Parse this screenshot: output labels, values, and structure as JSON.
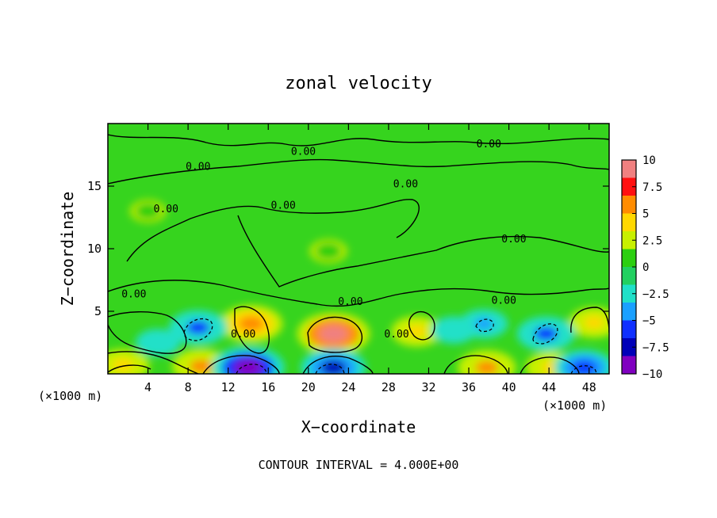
{
  "chart_data": {
    "type": "heatmap",
    "title": "zonal velocity",
    "xlabel": "X−coordinate",
    "ylabel": "Z−coordinate",
    "x_unit_label_left": "(×1000 m)",
    "x_unit_label_right": "(×1000 m)",
    "footer": "CONTOUR INTERVAL = 4.000E+00",
    "xlim": [
      0,
      50
    ],
    "ylim": [
      0,
      20
    ],
    "x_ticks": [
      4,
      8,
      12,
      16,
      20,
      24,
      28,
      32,
      36,
      40,
      44,
      48
    ],
    "x_tick_labels": [
      "4",
      "8",
      "12",
      "16",
      "20",
      "24",
      "28",
      "32",
      "36",
      "40",
      "44",
      "48"
    ],
    "y_ticks": [
      5,
      10,
      15
    ],
    "y_tick_labels": [
      "5",
      "10",
      "15"
    ],
    "colorbar": {
      "range": [
        -10,
        10
      ],
      "ticks": [
        10,
        7.5,
        5,
        2.5,
        0,
        -2.5,
        -5,
        -7.5,
        -10
      ],
      "tick_labels": [
        "10",
        "7.5",
        "5",
        "2.5",
        "0",
        "−2.5",
        "−5",
        "−7.5",
        "−10"
      ],
      "colors": [
        "#f08080",
        "#ff1010",
        "#ff8c00",
        "#ffd800",
        "#c8f000",
        "#2ccf10",
        "#22d060",
        "#20e0c8",
        "#1aa0ff",
        "#1030ff",
        "#0000b8",
        "#8000c0"
      ]
    },
    "contour_label_text": "0.00",
    "contour_label_positions": [
      {
        "x": 9.0,
        "z": 16.3
      },
      {
        "x": 19.5,
        "z": 17.5
      },
      {
        "x": 38.0,
        "z": 18.1
      },
      {
        "x": 29.7,
        "z": 14.9
      },
      {
        "x": 5.8,
        "z": 12.9
      },
      {
        "x": 17.5,
        "z": 13.2
      },
      {
        "x": 40.5,
        "z": 10.5
      },
      {
        "x": 2.6,
        "z": 6.1
      },
      {
        "x": 24.2,
        "z": 5.5
      },
      {
        "x": 39.5,
        "z": 5.6
      },
      {
        "x": 13.5,
        "z": 2.9
      },
      {
        "x": 28.8,
        "z": 2.9
      }
    ],
    "velocity_features": [
      {
        "x": 22.5,
        "z": 3.2,
        "value": 8.5
      },
      {
        "x": 14.3,
        "z": 4.0,
        "value": 6.5
      },
      {
        "x": 9.3,
        "z": 0.6,
        "value": 5.5
      },
      {
        "x": 1.5,
        "z": 0.7,
        "value": 4.5
      },
      {
        "x": 30.8,
        "z": 3.4,
        "value": 4.0
      },
      {
        "x": 37.8,
        "z": 0.5,
        "value": 5.5
      },
      {
        "x": 48.5,
        "z": 4.1,
        "value": 4.0
      },
      {
        "x": 44.3,
        "z": 0.5,
        "value": 4.5
      },
      {
        "x": 9.0,
        "z": 3.7,
        "value": -5.5
      },
      {
        "x": 14.0,
        "z": 0.5,
        "value": -8.5
      },
      {
        "x": 22.5,
        "z": 0.5,
        "value": -7.0
      },
      {
        "x": 43.7,
        "z": 3.2,
        "value": -5.5
      },
      {
        "x": 47.5,
        "z": 0.5,
        "value": -6.0
      },
      {
        "x": 37.5,
        "z": 4.0,
        "value": -3.5
      },
      {
        "x": 34.5,
        "z": 3.5,
        "value": -2.8
      },
      {
        "x": 5.0,
        "z": 2.5,
        "value": -2.8
      },
      {
        "x": 4.0,
        "z": 13.0,
        "value": 1.0
      },
      {
        "x": 22.0,
        "z": 9.8,
        "value": 1.3
      }
    ],
    "grid": false,
    "legend": "colorbar right"
  }
}
